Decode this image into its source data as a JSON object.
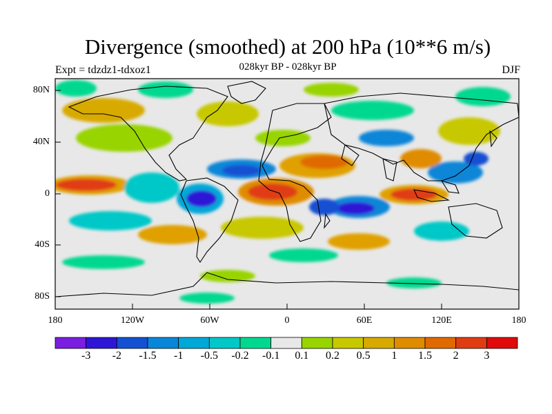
{
  "header": {
    "title": "Divergence (smoothed) at 200 hPa (10**6 m/s)",
    "subtitle": "028kyr BP - 028kyr BP",
    "experiment": "Expt = tdzdz1-tdxoz1",
    "season": "DJF"
  },
  "axes": {
    "lat_labels": [
      "80N",
      "40N",
      "0",
      "40S",
      "80S"
    ],
    "lon_labels": [
      "180",
      "120W",
      "60W",
      "0",
      "60E",
      "120E",
      "180"
    ]
  },
  "colorbar": {
    "colors": [
      "#7a1ee0",
      "#2f16d6",
      "#1450d2",
      "#0a86d8",
      "#00a8d8",
      "#00c8c8",
      "#00d890",
      "#e8e8e8",
      "#98d400",
      "#c8c800",
      "#d8aa00",
      "#e08c00",
      "#e06a00",
      "#e03c14",
      "#e00a0a"
    ],
    "labels": [
      "-3",
      "-2",
      "-1.5",
      "-1",
      "-0.5",
      "-0.2",
      "-0.1",
      "0.1",
      "0.2",
      "0.5",
      "1",
      "1.5",
      "2",
      "3"
    ]
  },
  "map_legend": {
    "ocean_background": "#e8e8e8",
    "coastline_color": "#000000"
  }
}
